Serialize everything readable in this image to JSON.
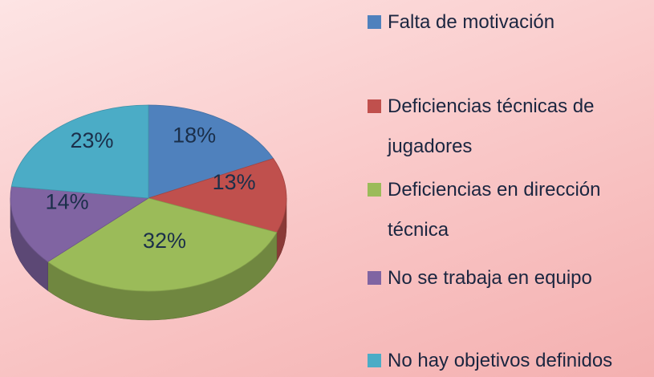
{
  "chart_data": {
    "type": "pie3d",
    "categories": [
      "Falta de motivación",
      "Deficiencias técnicas de jugadores",
      "Deficiencias en dirección técnica",
      "No se trabaja en equipo",
      "No hay objetivos definidos"
    ],
    "values": [
      18,
      13,
      32,
      14,
      23
    ],
    "value_labels": [
      "18%",
      "13%",
      "32%",
      "14%",
      "23%"
    ],
    "colors": [
      "#4f81bd",
      "#c0504d",
      "#9bbb59",
      "#8064a2",
      "#4bacc6"
    ],
    "legend": "right"
  }
}
